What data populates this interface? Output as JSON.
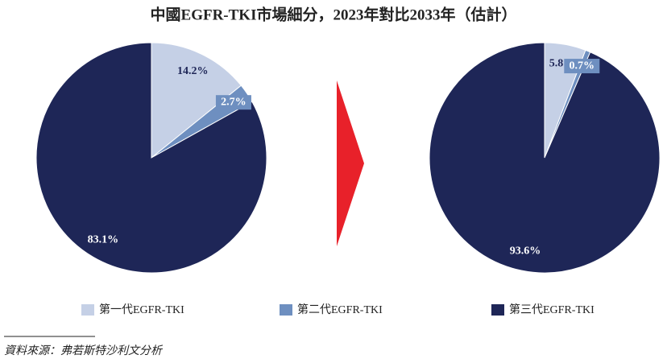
{
  "title": "中國EGFR-TKI市場細分，2023年對比2033年（估計）",
  "source": "資料來源：弗若斯特沙利文分析",
  "chart_data": [
    {
      "type": "pie",
      "categories": [
        "第一代EGFR-TKI",
        "第二代EGFR-TKI",
        "第三代EGFR-TKI"
      ],
      "values": [
        14.2,
        2.7,
        83.1
      ],
      "value_labels": [
        "14.2%",
        "2.7%",
        "83.1%"
      ],
      "colors": [
        "#c5d0e6",
        "#6e8fc0",
        "#1e2657"
      ]
    },
    {
      "type": "pie",
      "categories": [
        "第一代EGFR-TKI",
        "第二代EGFR-TKI",
        "第三代EGFR-TKI"
      ],
      "values": [
        5.8,
        0.7,
        93.6
      ],
      "value_labels": [
        "5.8%",
        "0.7%",
        "93.6%"
      ],
      "colors": [
        "#c5d0e6",
        "#6e8fc0",
        "#1e2657"
      ]
    }
  ]
}
